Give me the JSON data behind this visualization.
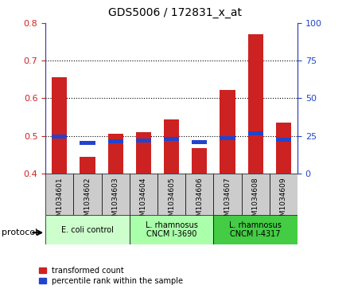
{
  "title": "GDS5006 / 172831_x_at",
  "samples": [
    "GSM1034601",
    "GSM1034602",
    "GSM1034603",
    "GSM1034604",
    "GSM1034605",
    "GSM1034606",
    "GSM1034607",
    "GSM1034608",
    "GSM1034609"
  ],
  "transformed_count": [
    0.655,
    0.445,
    0.505,
    0.51,
    0.543,
    0.468,
    0.623,
    0.77,
    0.535
  ],
  "percentile_rank": [
    24.5,
    20.5,
    21.5,
    22.0,
    23.0,
    21.0,
    23.5,
    26.5,
    22.5
  ],
  "bar_bottom": 0.4,
  "ylim_left": [
    0.4,
    0.8
  ],
  "ylim_right": [
    0,
    100
  ],
  "yticks_left": [
    0.4,
    0.5,
    0.6,
    0.7,
    0.8
  ],
  "yticks_right": [
    0,
    25,
    50,
    75,
    100
  ],
  "bar_color_red": "#cc2222",
  "bar_color_blue": "#2244cc",
  "grid_color": "#000000",
  "protocols": [
    {
      "label": "E. coli control",
      "start": 0,
      "end": 3,
      "color": "#ccffcc"
    },
    {
      "label": "L. rhamnosus\nCNCM I-3690",
      "start": 3,
      "end": 6,
      "color": "#aaffaa"
    },
    {
      "label": "L. rhamnosus\nCNCM I-4317",
      "start": 6,
      "end": 9,
      "color": "#44cc44"
    }
  ],
  "legend_red_label": "transformed count",
  "legend_blue_label": "percentile rank within the sample",
  "bar_width": 0.55,
  "plot_bg_color": "#ffffff",
  "tick_label_area_color": "#cccccc",
  "protocol_label": "protocol"
}
